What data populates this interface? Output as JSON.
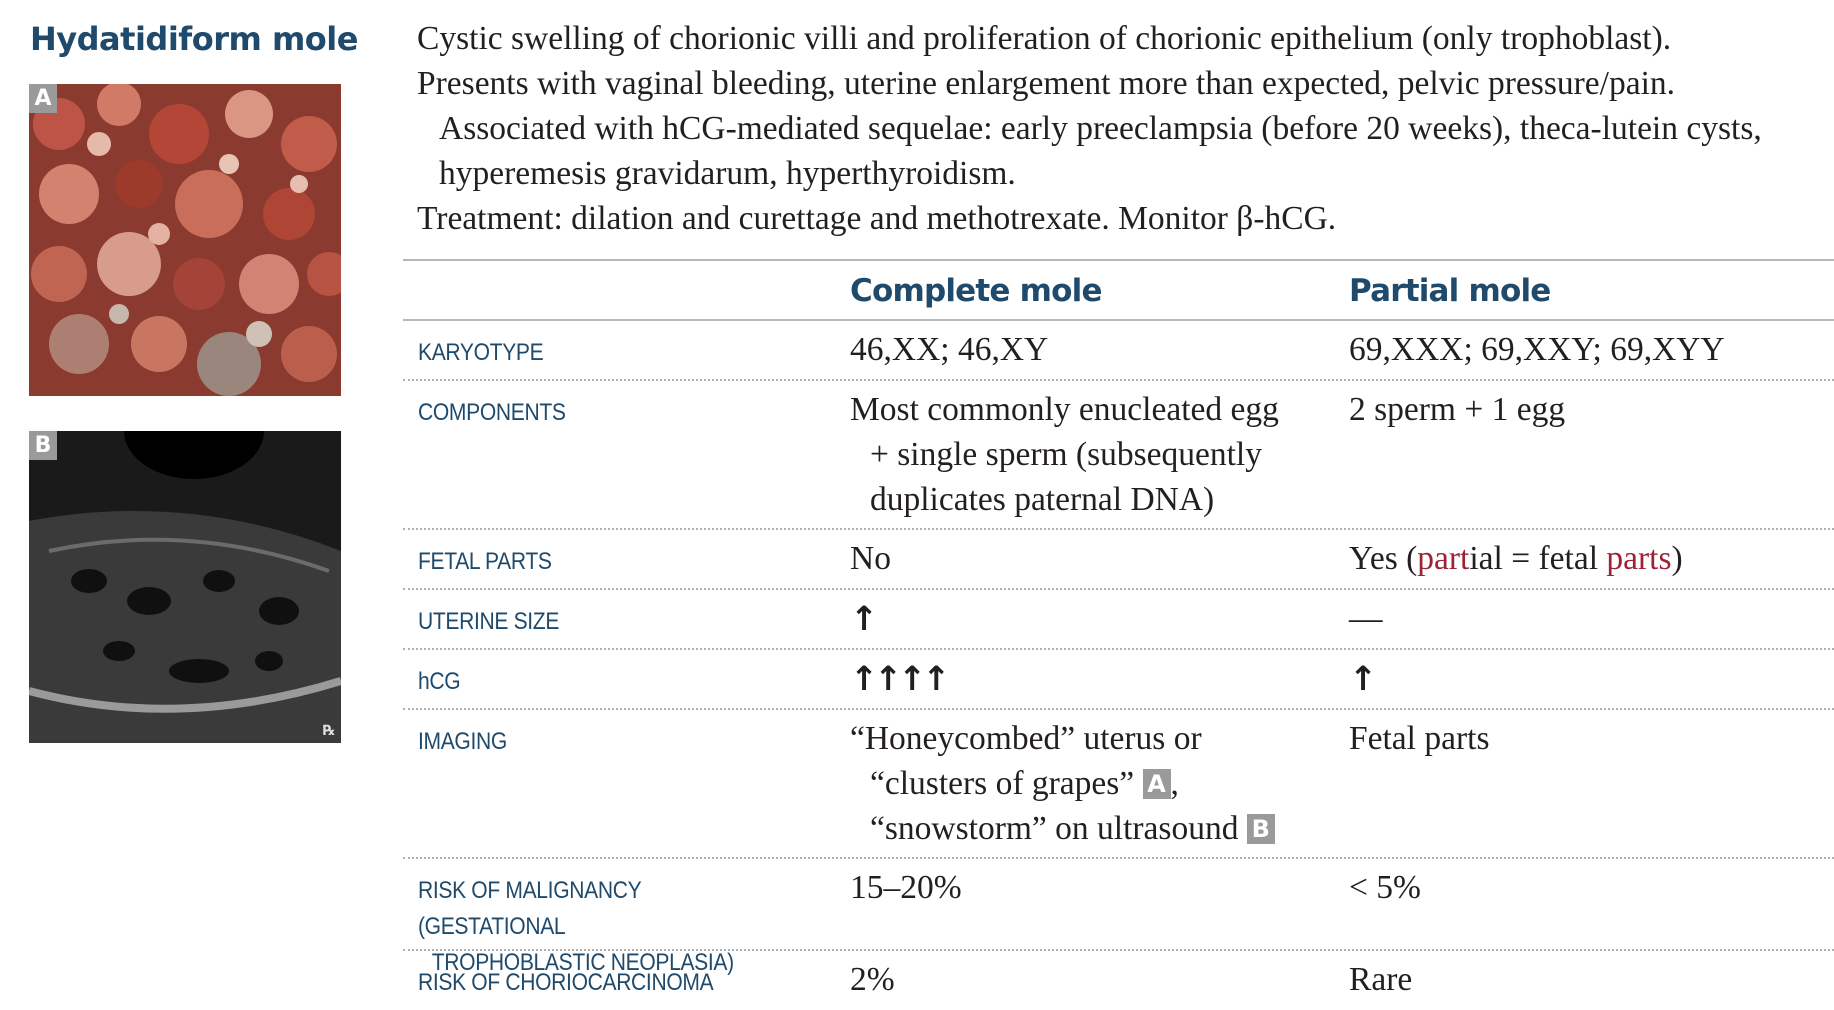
{
  "title": "Hydatidiform mole",
  "images": {
    "a_label": "A",
    "b_label": "B",
    "rx_mark": "℞"
  },
  "intro": {
    "line1": "Cystic swelling of chorionic villi and proliferation of chorionic epithelium (only trophoblast).",
    "line2": "Presents with vaginal bleeding, uterine enlargement more than expected, pelvic pressure/pain.",
    "line3": "Associated with hCG-mediated sequelae: early preeclampsia (before 20 weeks), theca-lutein cysts,",
    "line4": "hyperemesis gravidarum, hyperthyroidism.",
    "line5": "Treatment: dilation and curettage and methotrexate. Monitor β-hCG."
  },
  "table": {
    "headers": {
      "complete": "Complete mole",
      "partial": "Partial mole"
    },
    "rows": {
      "karyotype": {
        "label": "KARYOTYPE",
        "complete": "46,XX; 46,XY",
        "partial": "69,XXX; 69,XXY; 69,XYY"
      },
      "components": {
        "label": "COMPONENTS",
        "complete_l1": "Most commonly enucleated egg",
        "complete_l2": "+ single sperm (subsequently",
        "complete_l3": "duplicates paternal DNA)",
        "partial": "2 sperm + 1 egg"
      },
      "fetal_parts": {
        "label": "FETAL PARTS",
        "complete": "No",
        "partial_p1": "Yes (",
        "partial_hl1": "part",
        "partial_p2": "ial = fetal ",
        "partial_hl2": "parts",
        "partial_p3": ")"
      },
      "uterine_size": {
        "label": "UTERINE SIZE",
        "complete": "↑",
        "partial": "—"
      },
      "hcg": {
        "label": "hCG",
        "complete": "↑↑↑↑",
        "partial": "↑"
      },
      "imaging": {
        "label": "IMAGING",
        "complete_l1": "“Honeycombed” uterus or",
        "complete_l2": "“clusters of grapes”",
        "complete_l2_ref": "A",
        "complete_l2_end": ",",
        "complete_l3": "“snowstorm” on ultrasound",
        "complete_l3_ref": "B",
        "partial": "Fetal parts"
      },
      "malignancy": {
        "label_l1": "RISK OF MALIGNANCY (GESTATIONAL",
        "label_l2": "TROPHOBLASTIC NEOPLASIA)",
        "complete": "15–20%",
        "partial": "< 5%"
      },
      "choriocarcinoma": {
        "label": "RISK OF CHORIOCARCINOMA",
        "complete": "2%",
        "partial": "Rare"
      }
    }
  },
  "colors": {
    "heading": "#1f4a6b",
    "highlight": "#9b2335",
    "label_box": "#9a9a9a"
  }
}
